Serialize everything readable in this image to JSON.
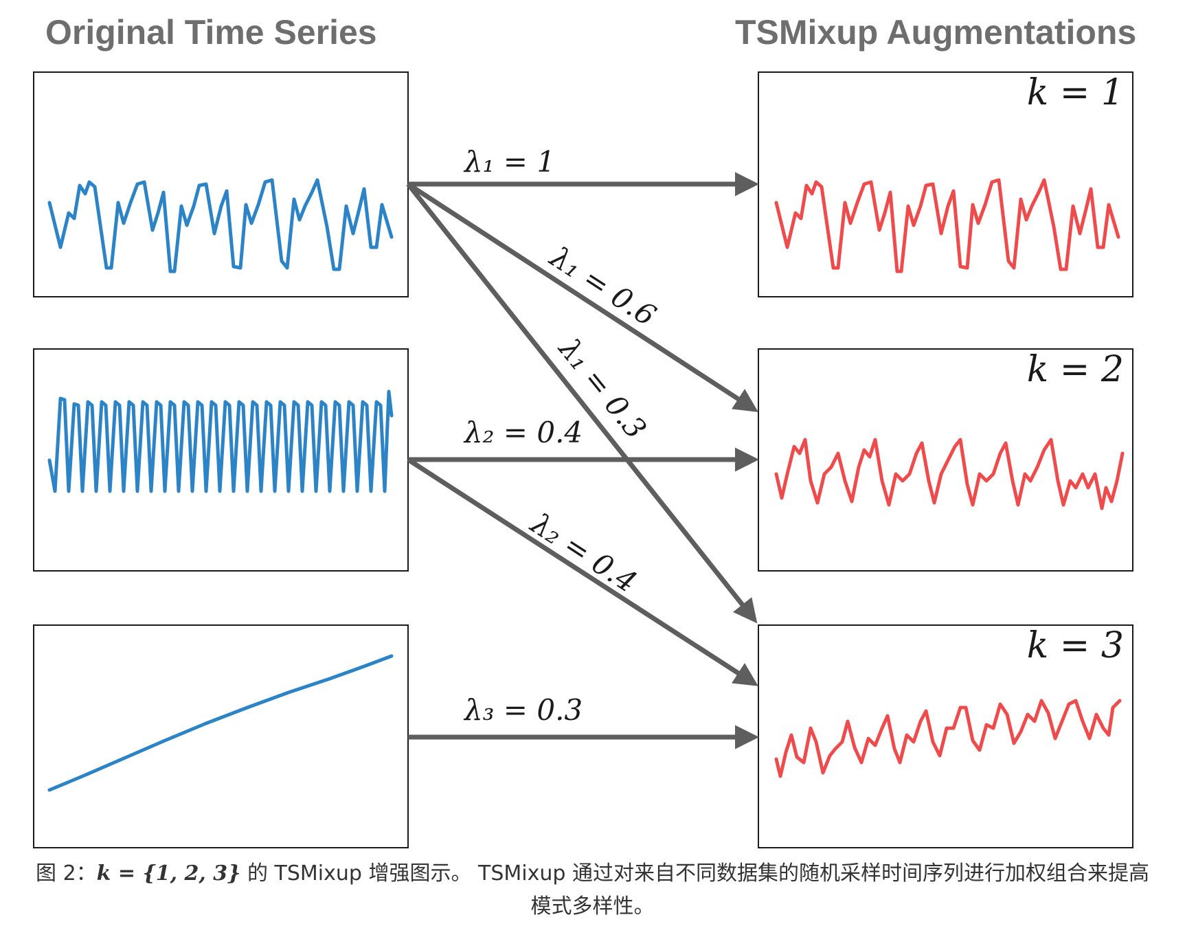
{
  "headings": {
    "left": "Original Time Series",
    "right": "TSMixup Augmentations"
  },
  "arrows": [
    {
      "from": 1,
      "to": 1,
      "lambda": "λ1",
      "value": "1",
      "label": "λ₁ = 1"
    },
    {
      "from": 1,
      "to": 2,
      "lambda": "λ1",
      "value": "0.6",
      "label": "λ₁ = 0.6"
    },
    {
      "from": 1,
      "to": 3,
      "lambda": "λ1",
      "value": "0.3",
      "label": "λ₁ = 0.3"
    },
    {
      "from": 2,
      "to": 2,
      "lambda": "λ2",
      "value": "0.4",
      "label": "λ₂ = 0.4"
    },
    {
      "from": 2,
      "to": 3,
      "lambda": "λ2",
      "value": "0.4",
      "label": "λ₂ = 0.4"
    },
    {
      "from": 3,
      "to": 3,
      "lambda": "λ3",
      "value": "0.3",
      "label": "λ₃ = 0.3"
    }
  ],
  "augmentations": [
    {
      "label": "k = 1"
    },
    {
      "label": "k = 2"
    },
    {
      "label": "k = 3"
    }
  ],
  "caption": {
    "prefix": "图 2：",
    "math": "k = {1, 2, 3}",
    "text": " 的 TSMixup 增强图示。 TSMixup 通过对来自不同数据集的随机采样时间序列进行加权组合来提高",
    "line2": "模式多样性。"
  },
  "colors": {
    "original_series": "#2c83c6",
    "augmented_series": "#ee4b4d",
    "arrow": "#5e5e5e",
    "heading": "#6e6e6e"
  }
}
